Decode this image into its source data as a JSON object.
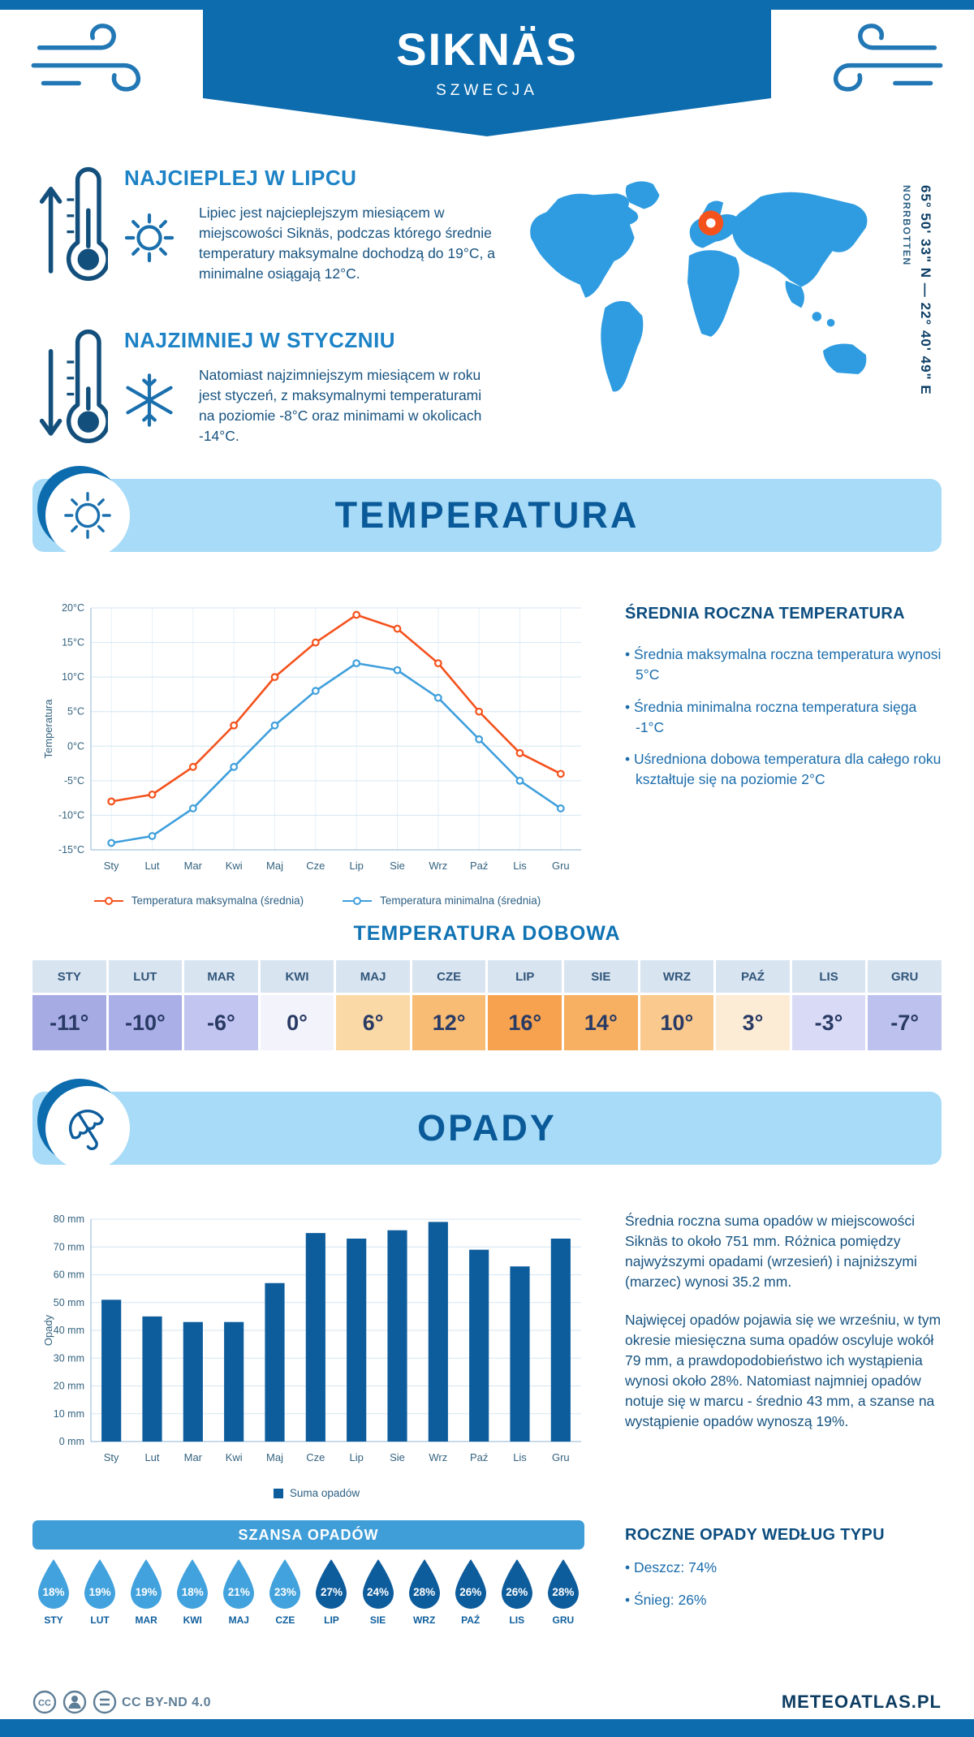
{
  "header": {
    "title": "SIKNÄS",
    "subtitle": "SZWECJA"
  },
  "location": {
    "coordinates": "65° 50' 33\" N — 22° 40' 49\" E",
    "region": "NORRBOTTEN"
  },
  "intro": {
    "warmest": {
      "heading": "NAJCIEPLEJ W LIPCU",
      "text": "Lipiec jest najcieplejszym miesiącem w miejscowości Siknäs, podczas którego średnie temperatury maksymalne dochodzą do 19°C, a minimalne osiągają 12°C."
    },
    "coldest": {
      "heading": "NAJZIMNIEJ W STYCZNIU",
      "text": "Natomiast najzimniejszym miesiącem w roku jest styczeń, z maksymalnymi temperaturami na poziomie -8°C oraz minimami w okolicach -14°C."
    }
  },
  "temperature": {
    "section_title": "TEMPERATURA",
    "summary_title": "ŚREDNIA ROCZNA TEMPERATURA",
    "bullets": [
      "Średnia maksymalna roczna temperatura wynosi 5°C",
      "Średnia minimalna roczna temperatura sięga -1°C",
      "Uśredniona dobowa temperatura dla całego roku kształtuje się na poziomie 2°C"
    ],
    "legend": [
      {
        "label": "Temperatura maksymalna (średnia)",
        "color": "#f4521d"
      },
      {
        "label": "Temperatura minimalna (średnia)",
        "color": "#3f9fdc"
      }
    ]
  },
  "daily_temperature": {
    "title": "TEMPERATURA DOBOWA",
    "columns": [
      {
        "month": "STY",
        "value": "-11°",
        "color": "#a6abe4"
      },
      {
        "month": "LUT",
        "value": "-10°",
        "color": "#abafe7"
      },
      {
        "month": "MAR",
        "value": "-6°",
        "color": "#c2c5f0"
      },
      {
        "month": "KWI",
        "value": "0°",
        "color": "#f3f4fb"
      },
      {
        "month": "MAJ",
        "value": "6°",
        "color": "#fbd9a6"
      },
      {
        "month": "CZE",
        "value": "12°",
        "color": "#f8bc74"
      },
      {
        "month": "LIP",
        "value": "16°",
        "color": "#f6a24f"
      },
      {
        "month": "SIE",
        "value": "14°",
        "color": "#f7b061"
      },
      {
        "month": "WRZ",
        "value": "10°",
        "color": "#f9c98d"
      },
      {
        "month": "PAŹ",
        "value": "3°",
        "color": "#fdecd5"
      },
      {
        "month": "LIS",
        "value": "-3°",
        "color": "#d9dbf6"
      },
      {
        "month": "GRU",
        "value": "-7°",
        "color": "#bdc1ee"
      }
    ]
  },
  "precipitation": {
    "section_title": "OPADY",
    "legend_label": "Suma opadów",
    "paragraphs": [
      "Średnia roczna suma opadów w miejscowości Siknäs to około 751 mm. Różnica pomiędzy najwyższymi opadami (wrzesień) i najniższymi (marzec) wynosi 35.2 mm.",
      "Najwięcej opadów pojawia się we wrześniu, w tym okresie miesięczna suma opadów oscyluje wokół 79 mm, a prawdopodobieństwo ich wystąpienia wynosi około 28%. Natomiast najmniej opadów notuje się w marcu - średnio 43 mm, a szanse na wystąpienie opadów wynoszą 19%."
    ],
    "type_title": "ROCZNE OPADY WEDŁUG TYPU",
    "type_bullets": [
      "Deszcz: 74%",
      "Śnieg: 26%"
    ]
  },
  "precip_chance": {
    "title": "SZANSA OPADÓW",
    "light_color": "#42a2dd",
    "dark_color": "#0d5c9c",
    "items": [
      {
        "month": "STY",
        "value": "18%",
        "dark": false
      },
      {
        "month": "LUT",
        "value": "19%",
        "dark": false
      },
      {
        "month": "MAR",
        "value": "19%",
        "dark": false
      },
      {
        "month": "KWI",
        "value": "18%",
        "dark": false
      },
      {
        "month": "MAJ",
        "value": "21%",
        "dark": false
      },
      {
        "month": "CZE",
        "value": "23%",
        "dark": false
      },
      {
        "month": "LIP",
        "value": "27%",
        "dark": true
      },
      {
        "month": "SIE",
        "value": "24%",
        "dark": true
      },
      {
        "month": "WRZ",
        "value": "28%",
        "dark": true
      },
      {
        "month": "PAŹ",
        "value": "26%",
        "dark": true
      },
      {
        "month": "LIS",
        "value": "26%",
        "dark": true
      },
      {
        "month": "GRU",
        "value": "28%",
        "dark": true
      }
    ]
  },
  "footer": {
    "license": "CC BY-ND 4.0",
    "brand": "METEOATLAS.PL"
  },
  "chart_data": [
    {
      "type": "line",
      "title": "Średnia temperatura miesięczna",
      "categories": [
        "Sty",
        "Lut",
        "Mar",
        "Kwi",
        "Maj",
        "Cze",
        "Lip",
        "Sie",
        "Wrz",
        "Paź",
        "Lis",
        "Gru"
      ],
      "series": [
        {
          "name": "Temperatura maksymalna (średnia)",
          "color": "#f4521d",
          "values": [
            -8,
            -7,
            -3,
            3,
            10,
            15,
            19,
            17,
            12,
            5,
            -1,
            -4
          ]
        },
        {
          "name": "Temperatura minimalna (średnia)",
          "color": "#3f9fdc",
          "values": [
            -14,
            -13,
            -9,
            -3,
            3,
            8,
            12,
            11,
            7,
            1,
            -5,
            -9
          ]
        }
      ],
      "xlabel": "",
      "ylabel": "Temperatura",
      "ylim": [
        -15,
        20
      ],
      "ytick_step": 5,
      "ytick_suffix": "°C",
      "grid": true,
      "legend_position": "bottom"
    },
    {
      "type": "bar",
      "title": "Suma opadów miesięczna",
      "categories": [
        "Sty",
        "Lut",
        "Mar",
        "Kwi",
        "Maj",
        "Cze",
        "Lip",
        "Sie",
        "Wrz",
        "Paź",
        "Lis",
        "Gru"
      ],
      "values": [
        51,
        45,
        43,
        43,
        57,
        75,
        73,
        76,
        79,
        69,
        63,
        73
      ],
      "bar_color": "#0d5c9c",
      "xlabel": "",
      "ylabel": "Opady",
      "ylim": [
        0,
        80
      ],
      "ytick_step": 10,
      "ytick_suffix": " mm",
      "grid": true,
      "legend": "Suma opadów",
      "legend_position": "bottom"
    }
  ]
}
